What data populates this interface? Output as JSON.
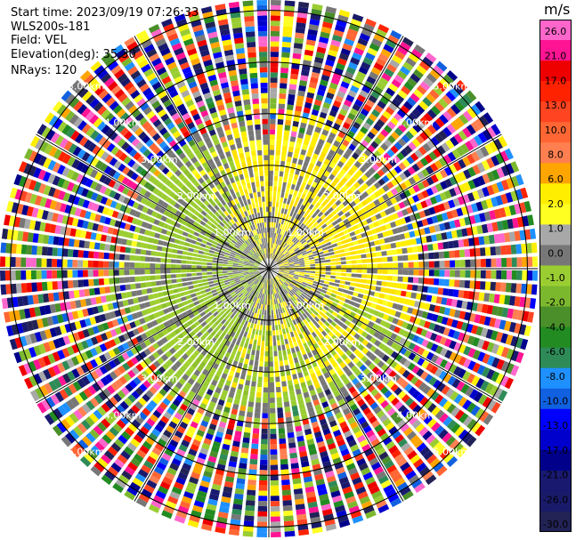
{
  "header": {
    "start_time": "Start time: 2023/09/19 07:26:33",
    "instrument": "WLS200s-181",
    "field": "Field: VEL",
    "elevation": "Elevation(deg): 35.30",
    "nrays": "NRays: 120"
  },
  "chart_data": {
    "type": "ppi-scan",
    "field": "VEL",
    "units": "m/s",
    "nrays": 120,
    "range_rings_km": [
      1.0,
      2.0,
      3.0,
      4.0,
      5.0
    ],
    "range_labels": [
      "1.00km",
      "2.00km",
      "3.00km",
      "4.00km",
      "5.00km"
    ],
    "max_range_km": 5.2,
    "velocity_pattern": {
      "receding_sector_deg": [
        0,
        160
      ],
      "approaching_sector_deg": [
        160,
        360
      ],
      "clear_signal_range_km": 2.5,
      "noise_beyond_range_km": 3.2
    },
    "colorbar": {
      "unit_label": "m/s",
      "tick_labels": [
        "26.0",
        "21.0",
        "17.0",
        "13.0",
        "10.0",
        "8.0",
        "6.0",
        "2.0",
        "1.0",
        "0.0",
        "-1.0",
        "-2.0",
        "-4.0",
        "-6.0",
        "-8.0",
        "-10.0",
        "-13.0",
        "-17.0",
        "-21.0",
        "-26.0",
        "-30.0"
      ],
      "colors": [
        "#ff66cc",
        "#ff1493",
        "#ee0000",
        "#ff2200",
        "#ff4422",
        "#ff6633",
        "#ff7f50",
        "#ffa500",
        "#ffee00",
        "#ffff22",
        "#a8a8a8",
        "#777777",
        "#9acd32",
        "#7cb82e",
        "#4a8f2a",
        "#228b22",
        "#2e8b57",
        "#1e90ff",
        "#1060e0",
        "#0000ff",
        "#0000cd",
        "#00008b",
        "#191970",
        "#1a1a6a",
        "#222255"
      ]
    }
  }
}
